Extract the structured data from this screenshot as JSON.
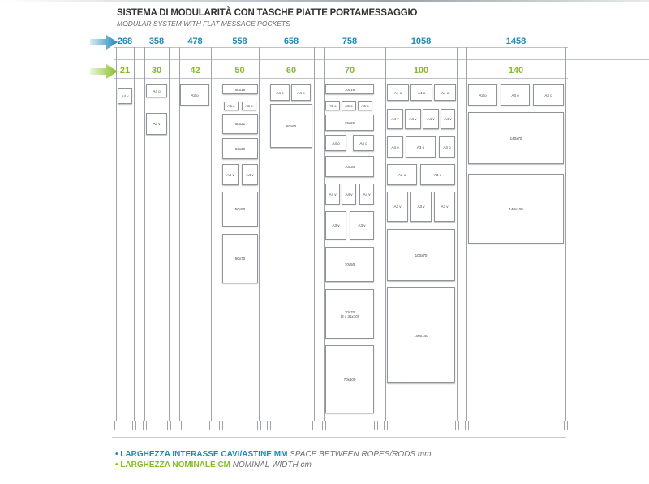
{
  "title": "SISTEMA DI MODULARITÀ CON TASCHE PIATTE PORTAMESSAGGIO",
  "subtitle": "MODULAR SYSTEM WITH FLAT MESSAGE POCKETS",
  "colors": {
    "blue": "#1e88b8",
    "green": "#86bc25",
    "rope": "#9ea3a7"
  },
  "columns": [
    {
      "mm": "268",
      "cm": "21",
      "pockets": [
        {
          "label": "A4 v"
        }
      ]
    },
    {
      "mm": "358",
      "cm": "30",
      "pockets": [
        {
          "label": "A4 o"
        },
        {
          "label": "A3 v"
        }
      ]
    },
    {
      "mm": "478",
      "cm": "42",
      "pockets": [
        {
          "label": "A3 o"
        }
      ]
    },
    {
      "mm": "558",
      "cm": "50",
      "pockets": [
        {
          "label": "50x15"
        },
        {
          "label": "A5 o"
        },
        {
          "label": "A5 o"
        },
        {
          "label": "50x21"
        },
        {
          "label": "50x30"
        },
        {
          "label": "A4 v"
        },
        {
          "label": "A4 v"
        },
        {
          "label": "50x50"
        },
        {
          "label": "50x70"
        }
      ]
    },
    {
      "mm": "658",
      "cm": "60",
      "pockets": [
        {
          "label": "A4 o"
        },
        {
          "label": "A4 o"
        },
        {
          "label": "60x60"
        }
      ]
    },
    {
      "mm": "758",
      "cm": "70",
      "pockets": [
        {
          "label": "70x15"
        },
        {
          "label": "A5 o"
        },
        {
          "label": "A5 o"
        },
        {
          "label": "A5 o"
        },
        {
          "label": "70x21"
        },
        {
          "label": "A4 o"
        },
        {
          "label": "A4 o"
        },
        {
          "label": "70x30"
        },
        {
          "label": "A4 v"
        },
        {
          "label": "A4 v"
        },
        {
          "label": "A4 v"
        },
        {
          "label": "A3 v"
        },
        {
          "label": "A3 v"
        },
        {
          "label": "70x50"
        },
        {
          "label": "70x70\n(2 x 35x70)"
        },
        {
          "label": "70x100"
        }
      ]
    },
    {
      "mm": "1058",
      "cm": "100",
      "pockets": [
        {
          "label": "A4 o"
        },
        {
          "label": "A4 o"
        },
        {
          "label": "A4 o"
        },
        {
          "label": "A4 v"
        },
        {
          "label": "A4 v"
        },
        {
          "label": "A4 v"
        },
        {
          "label": "A4 v"
        },
        {
          "label": "A4 o"
        },
        {
          "label": "A3 o"
        },
        {
          "label": "A4 o"
        },
        {
          "label": "A3 o"
        },
        {
          "label": "A3 o"
        },
        {
          "label": "A3 v"
        },
        {
          "label": "A3 v"
        },
        {
          "label": "A3 v"
        },
        {
          "label": "100x70"
        },
        {
          "label": "100x140"
        }
      ]
    },
    {
      "mm": "1458",
      "cm": "140",
      "pockets": [
        {
          "label": "A3 o"
        },
        {
          "label": "A3 o"
        },
        {
          "label": "A3 o"
        },
        {
          "label": "140x70"
        },
        {
          "label": "140x100"
        }
      ]
    }
  ],
  "legend": {
    "line1_bold": "• LARGHEZZA INTERASSE CAVI/ASTINE MM",
    "line1_italic": " SPACE BETWEEN ROPES/RODS mm",
    "line2_bold": "• LARGHEZZA NOMINALE CM",
    "line2_italic": " NOMINAL WIDTH cm"
  }
}
